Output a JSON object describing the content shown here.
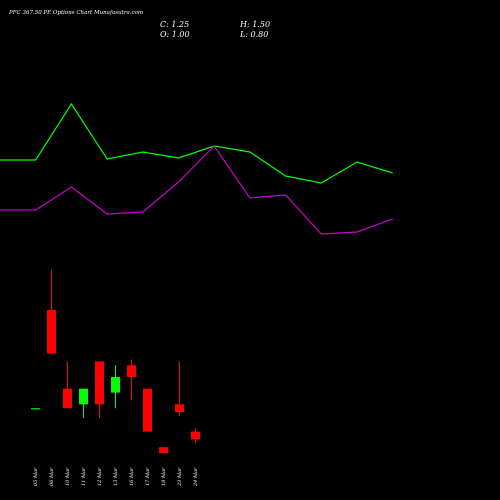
{
  "header": {
    "title": "PFC 367.50 PE Options Chart Munafasutra.com",
    "close": "C: 1.25",
    "high": "H: 1.50",
    "open": "O: 1.00",
    "low": "L: 0.80"
  },
  "colors": {
    "up": "#00ff00",
    "down": "#ff0000",
    "line1": "#00ff00",
    "line2": "#cc00cc",
    "bg": "#000000"
  },
  "chart_data": [
    {
      "type": "line",
      "title": "",
      "x": [
        "",
        "05 Mar",
        "06 Mar",
        "10 Mar",
        "11 Mar",
        "12 Mar",
        "13 Mar",
        "16 Mar",
        "17 Mar",
        "18 Mar",
        "23 Mar",
        "24 Mar"
      ],
      "series": [
        {
          "values": [
            160,
            160,
            104,
            159,
            152,
            158,
            146,
            152,
            176,
            183,
            162,
            173
          ]
        },
        {
          "values": [
            210,
            210,
            187,
            214,
            212,
            182,
            146,
            198,
            195,
            234,
            232,
            219
          ]
        }
      ],
      "ylim": [
        100,
        240
      ]
    },
    {
      "type": "candlestick",
      "categories": [
        "05 Mar",
        "06 Mar",
        "10 Mar",
        "11 Mar",
        "12 Mar",
        "13 Mar",
        "16 Mar",
        "17 Mar",
        "18 Mar",
        "23 Mar",
        "24 Mar"
      ],
      "open": [
        1.2,
        3.72,
        1.7,
        1.3,
        2.4,
        1.6,
        2.3,
        1.7,
        0.2,
        1.3,
        0.6
      ],
      "high": [
        1.2,
        4.75,
        2.4,
        1.7,
        2.4,
        2.3,
        2.45,
        1.7,
        0.2,
        2.4,
        0.7
      ],
      "low": [
        1.2,
        2.6,
        1.2,
        0.95,
        0.95,
        1.2,
        1.4,
        0.6,
        0.05,
        1.0,
        0.3
      ],
      "close": [
        1.2,
        2.6,
        1.2,
        1.7,
        1.3,
        2.0,
        2.0,
        0.6,
        0.05,
        1.1,
        0.4
      ],
      "ylim": [
        0,
        5
      ]
    }
  ]
}
